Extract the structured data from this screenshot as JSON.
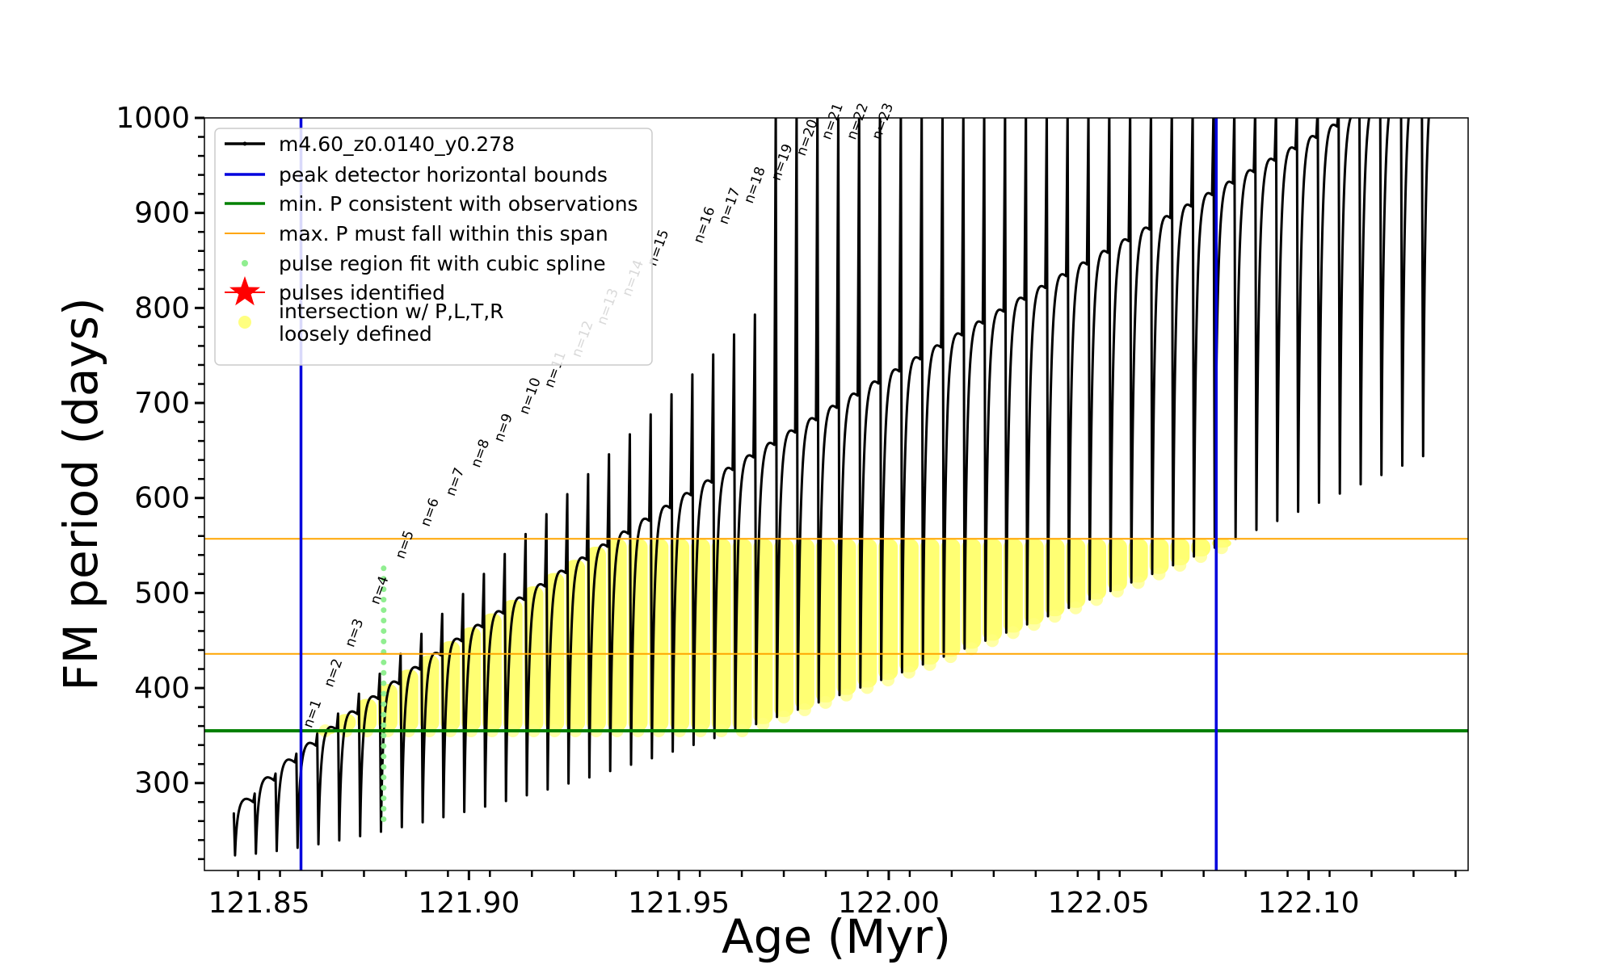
{
  "chart_data": {
    "type": "line",
    "xlabel": "Age (Myr)",
    "ylabel": "FM period (days)",
    "xlim": [
      121.837,
      122.138
    ],
    "ylim": [
      208,
      1000
    ],
    "xticks": [
      "121.85",
      "121.90",
      "121.95",
      "122.00",
      "122.05",
      "122.10"
    ],
    "yticks": [
      "300",
      "400",
      "500",
      "600",
      "700",
      "800",
      "900",
      "1000"
    ],
    "grid": false,
    "legend_position": "top-left",
    "legend": [
      {
        "label": "m4.60_z0.0140_y0.278",
        "color": "#000000",
        "style": "line-dot"
      },
      {
        "label": "peak detector horizontal bounds",
        "color": "#0000dd",
        "style": "line"
      },
      {
        "label": "min. P consistent with observations",
        "color": "#008000",
        "style": "line"
      },
      {
        "label": "max. P must fall within this span",
        "color": "#ffa500",
        "style": "line"
      },
      {
        "label": "pulse region fit with cubic spline",
        "color": "#90ee90",
        "style": "dot"
      },
      {
        "label": "pulses identified",
        "color": "#ff0000",
        "style": "star"
      },
      {
        "label": "intersection w/ P,L,T,R\nloosely defined",
        "color": "#ffff80",
        "style": "dot"
      }
    ],
    "vertical_lines": [
      {
        "x": 121.86,
        "color": "#0000dd"
      },
      {
        "x": 122.078,
        "color": "#0000dd"
      }
    ],
    "horizontal_lines": [
      {
        "y": 355,
        "color": "#008000",
        "width": 4
      },
      {
        "y": 436,
        "color": "#ffa500",
        "width": 2
      },
      {
        "y": 557,
        "color": "#ffa500",
        "width": 2
      }
    ],
    "track_start_x": 121.844,
    "track_end_x": 122.127,
    "pulse_labels": [
      "n=1",
      "n=2",
      "n=3",
      "n=4",
      "n=5",
      "n=6",
      "n=7",
      "n=8",
      "n=9",
      "n=10",
      "n=11",
      "n=12",
      "n=13",
      "n=14",
      "n=15",
      "n=16",
      "n=17",
      "n=18",
      "n=19",
      "n=20",
      "n=21",
      "n=22",
      "n=23"
    ]
  }
}
